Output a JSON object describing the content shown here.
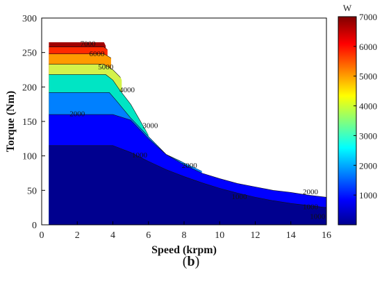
{
  "chart_data": {
    "type": "contour",
    "title": "",
    "xlabel": "Speed (krpm)",
    "ylabel": "Torque (Nm)",
    "xlim": [
      0,
      16
    ],
    "ylim": [
      0,
      300
    ],
    "xticks": [
      0,
      2,
      4,
      6,
      8,
      10,
      12,
      14,
      16
    ],
    "yticks": [
      0,
      50,
      100,
      150,
      200,
      250,
      300
    ],
    "grid": false,
    "colorbar": {
      "unit": "W",
      "range": [
        0,
        7000
      ],
      "ticks": [
        1000,
        2000,
        3000,
        4000,
        5000,
        6000,
        7000
      ],
      "colors": [
        "#00008f",
        "#0000ff",
        "#0080ff",
        "#00ffff",
        "#80ff80",
        "#ffff00",
        "#ff8000",
        "#ff0000",
        "#800000"
      ]
    },
    "torque_speed_envelope": {
      "x": [
        0.4,
        3.5,
        4.5,
        5,
        6,
        7,
        8,
        9,
        10,
        11,
        12,
        13,
        14,
        15,
        16
      ],
      "y": [
        265,
        265,
        210,
        180,
        130,
        105,
        90,
        78,
        70,
        63,
        58,
        53,
        50,
        46,
        43
      ]
    },
    "bands": [
      {
        "from": 0,
        "to": 1000,
        "color": "#00008f",
        "boundary": {
          "x": [
            4,
            5,
            6,
            7,
            8,
            9,
            10,
            11,
            12,
            13,
            14,
            15,
            16
          ],
          "y": [
            115,
            105,
            92,
            80,
            70,
            61,
            53,
            46,
            40,
            35,
            31,
            28,
            25
          ]
        }
      },
      {
        "from": 1000,
        "to": 2000,
        "color": "#0000ff",
        "boundary": {
          "x": [
            4,
            5,
            6,
            7,
            8,
            9,
            10,
            11,
            12,
            13,
            14,
            15,
            16
          ],
          "y": [
            160,
            152,
            125,
            102,
            87,
            75,
            67,
            60,
            55,
            50,
            47,
            43,
            40
          ]
        }
      },
      {
        "from": 2000,
        "to": 3000,
        "color": "#0080ff",
        "boundary": {
          "x": [
            3.8,
            4.2,
            5,
            6,
            7,
            8,
            9
          ],
          "y": [
            192,
            180,
            155,
            128,
            102,
            90,
            78
          ]
        }
      },
      {
        "from": 3000,
        "to": 4000,
        "color": "#00e5c4",
        "boundary": {
          "x": [
            3.6,
            4.0,
            4.4,
            5.0,
            6.0
          ],
          "y": [
            218,
            210,
            195,
            175,
            130
          ]
        }
      },
      {
        "from": 4000,
        "to": 5000,
        "color": "#d4f24a",
        "boundary": {
          "x": [
            3.5,
            4.0,
            4.5
          ],
          "y": [
            233,
            225,
            212
          ]
        }
      },
      {
        "from": 5000,
        "to": 6000,
        "color": "#ff9a00",
        "boundary": {
          "x": [
            3.5,
            3.9
          ],
          "y": [
            248,
            242
          ]
        }
      },
      {
        "from": 6000,
        "to": 7000,
        "color": "#ff2a00",
        "boundary": {
          "x": [
            3.5,
            3.7
          ],
          "y": [
            258,
            254
          ]
        }
      },
      {
        "from": 7000,
        "to": 7000,
        "color": "#a00000",
        "boundary": {
          "x": [
            3.5,
            3.6
          ],
          "y": [
            265,
            262
          ]
        }
      }
    ],
    "contour_labels": [
      {
        "text": "7000",
        "x": 2.6,
        "y": 262
      },
      {
        "text": "6000",
        "x": 3.1,
        "y": 247
      },
      {
        "text": "5000",
        "x": 3.6,
        "y": 228
      },
      {
        "text": "4000",
        "x": 4.8,
        "y": 195
      },
      {
        "text": "3000",
        "x": 6.1,
        "y": 143
      },
      {
        "text": "2000",
        "x": 2.0,
        "y": 160
      },
      {
        "text": "1000",
        "x": 5.5,
        "y": 100
      },
      {
        "text": "2000",
        "x": 8.3,
        "y": 85
      },
      {
        "text": "1000",
        "x": 11.1,
        "y": 40
      },
      {
        "text": "2000",
        "x": 15.1,
        "y": 47
      },
      {
        "text": "1000",
        "x": 15.1,
        "y": 25
      },
      {
        "text": "1000",
        "x": 15.5,
        "y": 11
      }
    ]
  },
  "panel_label": "b"
}
